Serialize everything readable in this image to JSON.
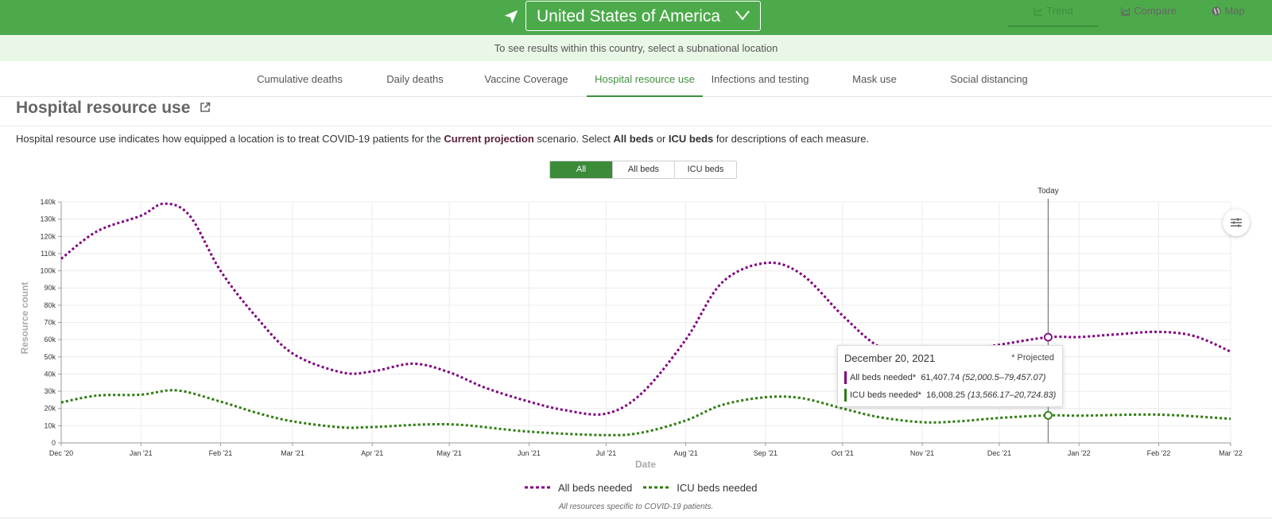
{
  "header": {
    "location": "United States of America",
    "subtitle": "To see results within this country, select a subnational location"
  },
  "tabs": [
    {
      "label": "Cumulative deaths"
    },
    {
      "label": "Daily deaths"
    },
    {
      "label": "Vaccine Coverage"
    },
    {
      "label": "Hospital resource use",
      "active": true
    },
    {
      "label": "Infections and testing"
    },
    {
      "label": "Mask use"
    },
    {
      "label": "Social distancing"
    }
  ],
  "page": {
    "title": "Hospital resource use",
    "desc_1": "Hospital resource use indicates how equipped a location is to treat COVID-19 patients for the",
    "desc_scenario": "Current projection",
    "desc_2": "scenario. Select",
    "desc_all": "All beds",
    "desc_or": "or",
    "desc_icu": "ICU beds",
    "desc_3": "for descriptions of each measure."
  },
  "view_tabs": [
    {
      "label": "Trend",
      "icon": "line-chart-icon",
      "active": true
    },
    {
      "label": "Compare",
      "icon": "area-chart-icon"
    },
    {
      "label": "Map",
      "icon": "globe-icon"
    }
  ],
  "toggle": [
    {
      "label": "All",
      "active": true
    },
    {
      "label": "All beds"
    },
    {
      "label": "ICU beds"
    }
  ],
  "tooltip": {
    "date": "December 20, 2021",
    "projected": "* Projected",
    "row1_label": "All beds needed*",
    "row1_value": "61,407.74",
    "row1_range": "(52,000.5–79,457.07)",
    "row2_label": "ICU beds needed*",
    "row2_value": "16,008.25",
    "row2_range": "(13,566.17–20,724.83)"
  },
  "footnote": "All resources specific to COVID-19 patients.",
  "colors": {
    "all_beds": "#800080",
    "icu_beds": "#2e7d0f",
    "brand": "#4caa4a"
  },
  "chart_data": {
    "type": "line",
    "xlabel": "Date",
    "ylabel": "Resource count",
    "ylim": [
      0,
      140000
    ],
    "yticks": [
      0,
      10000,
      20000,
      30000,
      40000,
      50000,
      60000,
      70000,
      80000,
      90000,
      100000,
      110000,
      120000,
      130000,
      140000
    ],
    "ytick_labels": [
      "0",
      "10k",
      "20k",
      "30k",
      "40k",
      "50k",
      "60k",
      "70k",
      "80k",
      "90k",
      "100k",
      "110k",
      "120k",
      "130k",
      "140k"
    ],
    "x_range": [
      "2020-12-01",
      "2022-03-01"
    ],
    "xticks": [
      "2020-12-01",
      "2021-01-01",
      "2021-02-01",
      "2021-03-01",
      "2021-04-01",
      "2021-05-01",
      "2021-06-01",
      "2021-07-01",
      "2021-08-01",
      "2021-09-01",
      "2021-10-01",
      "2021-11-01",
      "2021-12-01",
      "2022-01-01",
      "2022-02-01",
      "2022-03-01"
    ],
    "xtick_labels": [
      "Dec '20",
      "Jan '21",
      "Feb '21",
      "Mar '21",
      "Apr '21",
      "May '21",
      "Jun '21",
      "Jul '21",
      "Aug '21",
      "Sep '21",
      "Oct '21",
      "Nov '21",
      "Dec '21",
      "Jan '22",
      "Feb '22",
      "Mar '22"
    ],
    "today": "2021-12-20",
    "today_label": "Today",
    "grid": true,
    "legend_position": "bottom",
    "series": [
      {
        "name": "All beds needed",
        "color": "#800080",
        "x": [
          "2020-12-01",
          "2020-12-15",
          "2021-01-01",
          "2021-01-10",
          "2021-01-20",
          "2021-02-01",
          "2021-02-15",
          "2021-03-01",
          "2021-03-20",
          "2021-04-01",
          "2021-04-17",
          "2021-05-01",
          "2021-05-15",
          "2021-06-01",
          "2021-06-15",
          "2021-07-01",
          "2021-07-15",
          "2021-08-01",
          "2021-08-15",
          "2021-09-01",
          "2021-09-15",
          "2021-10-01",
          "2021-10-15",
          "2021-11-01",
          "2021-11-15",
          "2021-12-01",
          "2021-12-20",
          "2022-01-01",
          "2022-01-15",
          "2022-02-01",
          "2022-02-15",
          "2022-03-01"
        ],
        "values": [
          107000,
          123000,
          132000,
          139000,
          132000,
          100000,
          73000,
          52000,
          41000,
          41500,
          46000,
          41000,
          32000,
          24000,
          19000,
          17000,
          29000,
          60000,
          93000,
          104500,
          98000,
          74000,
          56000,
          46000,
          53000,
          57000,
          61400,
          61500,
          63000,
          64500,
          62000,
          53000
        ]
      },
      {
        "name": "ICU beds needed",
        "color": "#2e7d0f",
        "x": [
          "2020-12-01",
          "2020-12-15",
          "2021-01-01",
          "2021-01-15",
          "2021-02-01",
          "2021-02-15",
          "2021-03-01",
          "2021-03-20",
          "2021-04-01",
          "2021-05-01",
          "2021-06-01",
          "2021-07-01",
          "2021-07-15",
          "2021-08-01",
          "2021-08-15",
          "2021-09-01",
          "2021-09-15",
          "2021-10-01",
          "2021-10-15",
          "2021-11-01",
          "2021-11-15",
          "2021-12-01",
          "2021-12-20",
          "2022-01-01",
          "2022-02-01",
          "2022-03-01"
        ],
        "values": [
          23500,
          27500,
          28000,
          30500,
          24000,
          17500,
          12500,
          9000,
          9200,
          10800,
          6500,
          4500,
          6000,
          13000,
          22000,
          26500,
          26000,
          20000,
          15000,
          12000,
          12500,
          14500,
          16000,
          15800,
          16400,
          14000
        ]
      }
    ]
  }
}
